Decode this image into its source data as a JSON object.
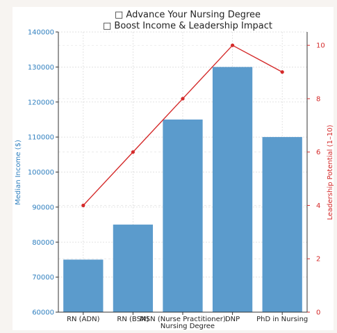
{
  "chart_data": {
    "type": "bar",
    "title": "□ Advance Your Nursing Degree",
    "subtitle": "□ Boost Income & Leadership Impact",
    "xlabel": "Nursing Degree",
    "ylabel": "Median Income ($)",
    "y2label": "Leadership Potential (1–10)",
    "categories": [
      "RN (ADN)",
      "RN (BSN)",
      "MSN (Nurse Practitioner)",
      "DNP",
      "PhD in Nursing"
    ],
    "series": [
      {
        "type": "bar",
        "axis": "left",
        "values": [
          75000,
          85000,
          115000,
          130000,
          110000
        ],
        "color": "#5b9bcc"
      },
      {
        "type": "line",
        "axis": "right",
        "values": [
          4,
          6,
          8,
          10,
          9
        ],
        "color": "#d42a2a"
      }
    ],
    "ylim": [
      60000,
      140000
    ],
    "yticks": [
      "60000",
      "70000",
      "80000",
      "90000",
      "100000",
      "110000",
      "120000",
      "130000",
      "140000"
    ],
    "y2lim": [
      0,
      10.5
    ],
    "y2ticks": [
      "0",
      "2",
      "4",
      "6",
      "8",
      "10"
    ],
    "grid": true
  }
}
